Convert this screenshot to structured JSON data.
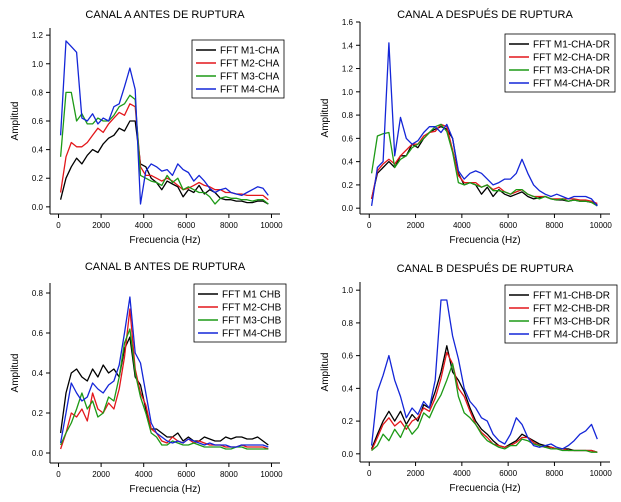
{
  "colors": {
    "M1": "#000000",
    "M2": "#e3171b",
    "M3": "#1d9a16",
    "M4": "#1426d8"
  },
  "chart_data": [
    {
      "type": "line",
      "title": "CANAL A ANTES DE RUPTURA",
      "xlabel": "Frecuencia (Hz)",
      "ylabel": "Amplitud",
      "xlim": [
        -400,
        10400
      ],
      "ylim": [
        -0.05,
        1.25
      ],
      "xticks": [
        0,
        2000,
        4000,
        6000,
        8000,
        10000
      ],
      "xtick_labels": [
        "0",
        "2000",
        "4000",
        "6000",
        "8000",
        "10000"
      ],
      "yticks": [
        0.0,
        0.2,
        0.4,
        0.6,
        0.8,
        1.0,
        1.2
      ],
      "ytick_labels": [
        "0.0",
        "0.2",
        "0.4",
        "0.6",
        "0.8",
        "1.0",
        "1.2"
      ],
      "legend_position": "top-right",
      "x": [
        100,
        350,
        600,
        850,
        1100,
        1350,
        1600,
        1850,
        2100,
        2350,
        2600,
        2850,
        3100,
        3350,
        3600,
        3850,
        4100,
        4350,
        4600,
        4850,
        5100,
        5350,
        5600,
        5850,
        6100,
        6350,
        6600,
        6850,
        7100,
        7350,
        7600,
        7850,
        8100,
        8350,
        8600,
        8850,
        9100,
        9350,
        9600,
        9850
      ],
      "series": [
        {
          "name": "FFT M1-CHA",
          "color_key": "M1",
          "values": [
            0.05,
            0.2,
            0.28,
            0.34,
            0.3,
            0.36,
            0.4,
            0.38,
            0.44,
            0.48,
            0.5,
            0.55,
            0.53,
            0.6,
            0.6,
            0.3,
            0.28,
            0.2,
            0.17,
            0.12,
            0.18,
            0.16,
            0.14,
            0.07,
            0.12,
            0.1,
            0.15,
            0.09,
            0.12,
            0.1,
            0.06,
            0.05,
            0.05,
            0.04,
            0.04,
            0.03,
            0.03,
            0.04,
            0.04,
            0.02
          ]
        },
        {
          "name": "FFT M2-CHA",
          "color_key": "M2",
          "values": [
            0.1,
            0.35,
            0.45,
            0.42,
            0.42,
            0.45,
            0.5,
            0.55,
            0.52,
            0.58,
            0.62,
            0.66,
            0.64,
            0.72,
            0.7,
            0.28,
            0.22,
            0.22,
            0.2,
            0.18,
            0.2,
            0.18,
            0.15,
            0.12,
            0.13,
            0.15,
            0.17,
            0.15,
            0.14,
            0.12,
            0.12,
            0.1,
            0.1,
            0.09,
            0.09,
            0.08,
            0.08,
            0.08,
            0.08,
            0.05
          ]
        },
        {
          "name": "FFT M3-CHA",
          "color_key": "M3",
          "values": [
            0.35,
            0.8,
            0.8,
            0.6,
            0.65,
            0.58,
            0.58,
            0.62,
            0.6,
            0.6,
            0.64,
            0.7,
            0.72,
            0.78,
            0.75,
            0.22,
            0.2,
            0.18,
            0.17,
            0.15,
            0.22,
            0.17,
            0.2,
            0.12,
            0.14,
            0.12,
            0.1,
            0.1,
            0.07,
            0.02,
            0.06,
            0.07,
            0.06,
            0.06,
            0.05,
            0.05,
            0.04,
            0.05,
            0.05,
            0.02
          ]
        },
        {
          "name": "FFT M4-CHA",
          "color_key": "M4",
          "values": [
            0.5,
            1.16,
            1.12,
            1.08,
            0.62,
            0.6,
            0.65,
            0.58,
            0.62,
            0.6,
            0.7,
            0.72,
            0.84,
            0.97,
            0.82,
            0.02,
            0.25,
            0.3,
            0.28,
            0.25,
            0.26,
            0.22,
            0.3,
            0.26,
            0.24,
            0.18,
            0.22,
            0.18,
            0.13,
            0.1,
            0.12,
            0.13,
            0.1,
            0.09,
            0.08,
            0.1,
            0.12,
            0.14,
            0.13,
            0.08
          ]
        }
      ]
    },
    {
      "type": "line",
      "title": "CANAL A DESPUÉS DE RUPTURA",
      "xlabel": "Frecuencia (Hz)",
      "ylabel": "Amplitud",
      "xlim": [
        -400,
        10400
      ],
      "ylim": [
        -0.05,
        1.6
      ],
      "xticks": [
        0,
        2000,
        4000,
        6000,
        8000,
        10000
      ],
      "xtick_labels": [
        "0",
        "2000",
        "4000",
        "6000",
        "8000",
        "10000"
      ],
      "yticks": [
        0.0,
        0.2,
        0.4,
        0.6,
        0.8,
        1.0,
        1.2,
        1.4,
        1.6
      ],
      "ytick_labels": [
        "0.0",
        "0.2",
        "0.4",
        "0.6",
        "0.8",
        "1.0",
        "1.2",
        "1.4",
        "1.6"
      ],
      "legend_position": "top-right",
      "x": [
        100,
        350,
        600,
        850,
        1100,
        1350,
        1600,
        1850,
        2100,
        2350,
        2600,
        2850,
        3100,
        3350,
        3600,
        3850,
        4100,
        4350,
        4600,
        4850,
        5100,
        5350,
        5600,
        5850,
        6100,
        6350,
        6600,
        6850,
        7100,
        7350,
        7600,
        7850,
        8100,
        8350,
        8600,
        8850,
        9100,
        9350,
        9600,
        9850
      ],
      "series": [
        {
          "name": "FFT M1-CHA-DR",
          "color_key": "M1",
          "values": [
            0.08,
            0.3,
            0.35,
            0.4,
            0.35,
            0.45,
            0.45,
            0.55,
            0.52,
            0.6,
            0.65,
            0.68,
            0.7,
            0.68,
            0.6,
            0.3,
            0.2,
            0.22,
            0.2,
            0.12,
            0.18,
            0.1,
            0.16,
            0.12,
            0.1,
            0.12,
            0.14,
            0.1,
            0.08,
            0.09,
            0.1,
            0.08,
            0.07,
            0.07,
            0.06,
            0.07,
            0.06,
            0.06,
            0.05,
            0.03
          ]
        },
        {
          "name": "FFT M2-CHA-DR",
          "color_key": "M2",
          "values": [
            0.08,
            0.32,
            0.38,
            0.42,
            0.38,
            0.45,
            0.5,
            0.55,
            0.55,
            0.62,
            0.65,
            0.66,
            0.72,
            0.7,
            0.5,
            0.28,
            0.22,
            0.22,
            0.22,
            0.18,
            0.2,
            0.16,
            0.18,
            0.14,
            0.12,
            0.14,
            0.16,
            0.12,
            0.1,
            0.1,
            0.1,
            0.08,
            0.08,
            0.08,
            0.08,
            0.08,
            0.07,
            0.07,
            0.06,
            0.04
          ]
        },
        {
          "name": "FFT M3-CHA-DR",
          "color_key": "M3",
          "values": [
            0.3,
            0.62,
            0.64,
            0.65,
            0.35,
            0.42,
            0.45,
            0.52,
            0.55,
            0.6,
            0.65,
            0.7,
            0.72,
            0.66,
            0.48,
            0.22,
            0.2,
            0.22,
            0.2,
            0.18,
            0.2,
            0.15,
            0.15,
            0.14,
            0.12,
            0.16,
            0.16,
            0.12,
            0.1,
            0.08,
            0.1,
            0.08,
            0.07,
            0.08,
            0.06,
            0.07,
            0.06,
            0.06,
            0.05,
            0.02
          ]
        },
        {
          "name": "FFT M4-CHA-DR",
          "color_key": "M4",
          "values": [
            0.02,
            0.35,
            0.4,
            1.42,
            0.45,
            0.78,
            0.6,
            0.55,
            0.58,
            0.65,
            0.7,
            0.7,
            0.65,
            0.72,
            0.6,
            0.32,
            0.25,
            0.3,
            0.32,
            0.3,
            0.25,
            0.2,
            0.22,
            0.25,
            0.25,
            0.3,
            0.42,
            0.3,
            0.2,
            0.15,
            0.12,
            0.1,
            0.12,
            0.1,
            0.08,
            0.1,
            0.1,
            0.1,
            0.08,
            0.02
          ]
        }
      ]
    },
    {
      "type": "line",
      "title": "CANAL B ANTES DE RUPTURA",
      "xlabel": "Frecuencia (Hz)",
      "ylabel": "Amplitud",
      "xlim": [
        -400,
        10400
      ],
      "ylim": [
        -0.05,
        0.85
      ],
      "xticks": [
        0,
        2000,
        4000,
        6000,
        8000,
        10000
      ],
      "xtick_labels": [
        "0",
        "2000",
        "4000",
        "6000",
        "8000",
        "10000"
      ],
      "yticks": [
        0.0,
        0.2,
        0.4,
        0.6,
        0.8
      ],
      "ytick_labels": [
        "0.0",
        "0.2",
        "0.4",
        "0.6",
        "0.8"
      ],
      "legend_position": "top-right",
      "x": [
        100,
        350,
        600,
        850,
        1100,
        1350,
        1600,
        1850,
        2100,
        2350,
        2600,
        2850,
        3100,
        3350,
        3600,
        3850,
        4100,
        4350,
        4600,
        4850,
        5100,
        5350,
        5600,
        5850,
        6100,
        6350,
        6600,
        6850,
        7100,
        7350,
        7600,
        7850,
        8100,
        8350,
        8600,
        8850,
        9100,
        9350,
        9600,
        9850
      ],
      "series": [
        {
          "name": "FFT M1 CHB",
          "color_key": "M1",
          "values": [
            0.1,
            0.3,
            0.4,
            0.42,
            0.38,
            0.36,
            0.42,
            0.38,
            0.44,
            0.4,
            0.42,
            0.38,
            0.52,
            0.58,
            0.38,
            0.34,
            0.22,
            0.12,
            0.12,
            0.1,
            0.08,
            0.08,
            0.1,
            0.06,
            0.08,
            0.06,
            0.06,
            0.08,
            0.07,
            0.06,
            0.06,
            0.08,
            0.07,
            0.08,
            0.08,
            0.07,
            0.07,
            0.08,
            0.06,
            0.04
          ]
        },
        {
          "name": "FFT M2-CHB",
          "color_key": "M2",
          "values": [
            0.02,
            0.1,
            0.2,
            0.18,
            0.22,
            0.16,
            0.3,
            0.22,
            0.2,
            0.25,
            0.22,
            0.32,
            0.48,
            0.72,
            0.42,
            0.3,
            0.24,
            0.12,
            0.1,
            0.06,
            0.05,
            0.08,
            0.06,
            0.05,
            0.07,
            0.05,
            0.06,
            0.05,
            0.04,
            0.04,
            0.04,
            0.03,
            0.03,
            0.03,
            0.04,
            0.03,
            0.03,
            0.03,
            0.03,
            0.02
          ]
        },
        {
          "name": "FFT M3-CHB",
          "color_key": "M3",
          "values": [
            0.04,
            0.1,
            0.15,
            0.22,
            0.3,
            0.22,
            0.26,
            0.18,
            0.2,
            0.28,
            0.26,
            0.38,
            0.55,
            0.62,
            0.4,
            0.28,
            0.2,
            0.1,
            0.08,
            0.04,
            0.04,
            0.06,
            0.05,
            0.04,
            0.04,
            0.05,
            0.04,
            0.03,
            0.03,
            0.03,
            0.03,
            0.02,
            0.02,
            0.03,
            0.03,
            0.02,
            0.02,
            0.02,
            0.02,
            0.02
          ]
        },
        {
          "name": "FFT M4-CHB",
          "color_key": "M4",
          "values": [
            0.05,
            0.2,
            0.35,
            0.3,
            0.26,
            0.28,
            0.35,
            0.32,
            0.3,
            0.34,
            0.36,
            0.44,
            0.6,
            0.78,
            0.5,
            0.45,
            0.3,
            0.15,
            0.1,
            0.08,
            0.06,
            0.05,
            0.06,
            0.05,
            0.07,
            0.06,
            0.05,
            0.04,
            0.05,
            0.04,
            0.04,
            0.04,
            0.03,
            0.03,
            0.04,
            0.04,
            0.04,
            0.04,
            0.04,
            0.03
          ]
        }
      ]
    },
    {
      "type": "line",
      "title": "CANAL B DESPUÉS DE RUPTURA",
      "xlabel": "Frecuencia (Hz)",
      "ylabel": "Amplitud",
      "xlim": [
        -400,
        10400
      ],
      "ylim": [
        -0.05,
        1.05
      ],
      "xticks": [
        0,
        2000,
        4000,
        6000,
        8000,
        10000
      ],
      "xtick_labels": [
        "0",
        "2000",
        "4000",
        "6000",
        "8000",
        "10000"
      ],
      "yticks": [
        0.0,
        0.2,
        0.4,
        0.6,
        0.8,
        1.0
      ],
      "ytick_labels": [
        "0.0",
        "0.2",
        "0.4",
        "0.6",
        "0.8",
        "1.0"
      ],
      "legend_position": "top-right",
      "x": [
        100,
        350,
        600,
        850,
        1100,
        1350,
        1600,
        1850,
        2100,
        2350,
        2600,
        2850,
        3100,
        3350,
        3600,
        3850,
        4100,
        4350,
        4600,
        4850,
        5100,
        5350,
        5600,
        5850,
        6100,
        6350,
        6600,
        6850,
        7100,
        7350,
        7600,
        7850,
        8100,
        8350,
        8600,
        8850,
        9100,
        9350,
        9600,
        9850
      ],
      "series": [
        {
          "name": "FFT M1-CHB-DR",
          "color_key": "M1",
          "values": [
            0.03,
            0.12,
            0.2,
            0.26,
            0.2,
            0.26,
            0.18,
            0.24,
            0.2,
            0.3,
            0.28,
            0.38,
            0.5,
            0.66,
            0.5,
            0.45,
            0.38,
            0.28,
            0.2,
            0.15,
            0.12,
            0.08,
            0.05,
            0.04,
            0.06,
            0.08,
            0.12,
            0.1,
            0.08,
            0.06,
            0.05,
            0.04,
            0.03,
            0.03,
            0.03,
            0.02,
            0.02,
            0.02,
            0.02,
            0.01
          ]
        },
        {
          "name": "FFT M2-CHB-DR",
          "color_key": "M2",
          "values": [
            0.02,
            0.1,
            0.18,
            0.22,
            0.17,
            0.2,
            0.15,
            0.2,
            0.22,
            0.28,
            0.26,
            0.34,
            0.46,
            0.62,
            0.55,
            0.4,
            0.35,
            0.26,
            0.18,
            0.13,
            0.1,
            0.06,
            0.05,
            0.04,
            0.05,
            0.07,
            0.1,
            0.1,
            0.07,
            0.05,
            0.04,
            0.04,
            0.03,
            0.03,
            0.02,
            0.02,
            0.02,
            0.02,
            0.02,
            0.01
          ]
        },
        {
          "name": "FFT M3-CHB-DR",
          "color_key": "M3",
          "values": [
            0.02,
            0.05,
            0.12,
            0.08,
            0.15,
            0.1,
            0.18,
            0.12,
            0.16,
            0.25,
            0.22,
            0.3,
            0.36,
            0.45,
            0.55,
            0.35,
            0.25,
            0.22,
            0.18,
            0.12,
            0.08,
            0.06,
            0.04,
            0.03,
            0.05,
            0.05,
            0.09,
            0.08,
            0.06,
            0.05,
            0.04,
            0.03,
            0.03,
            0.02,
            0.02,
            0.02,
            0.02,
            0.02,
            0.01,
            0.01
          ]
        },
        {
          "name": "FFT M4-CHB-DR",
          "color_key": "M4",
          "values": [
            0.05,
            0.38,
            0.48,
            0.6,
            0.45,
            0.35,
            0.22,
            0.28,
            0.24,
            0.32,
            0.28,
            0.45,
            0.94,
            0.94,
            0.72,
            0.58,
            0.4,
            0.32,
            0.28,
            0.22,
            0.2,
            0.12,
            0.08,
            0.06,
            0.12,
            0.22,
            0.18,
            0.1,
            0.05,
            0.04,
            0.05,
            0.06,
            0.04,
            0.03,
            0.05,
            0.08,
            0.12,
            0.14,
            0.18,
            0.09
          ]
        }
      ]
    }
  ]
}
